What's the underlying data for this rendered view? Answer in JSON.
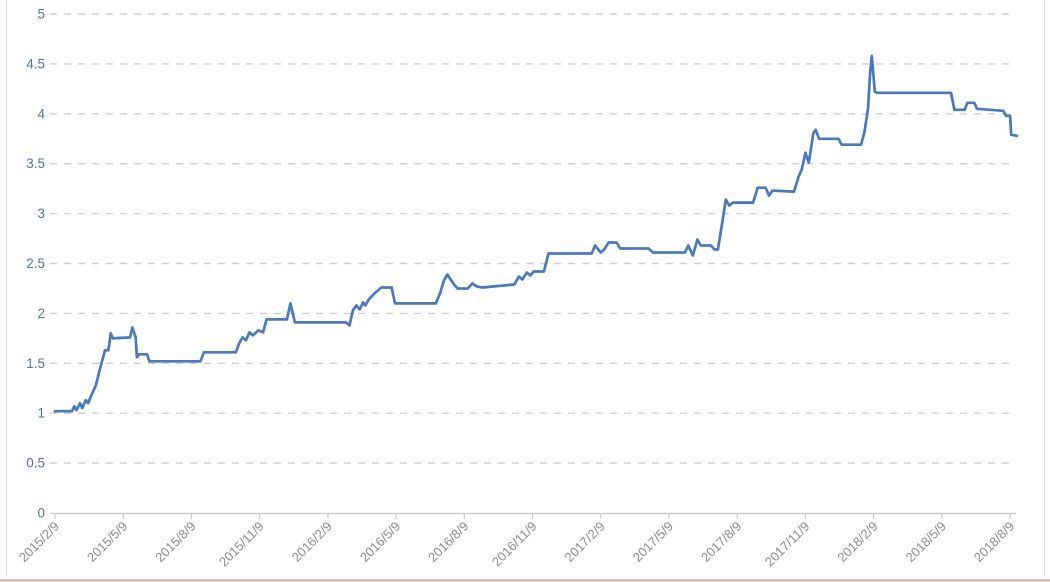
{
  "chart_data": {
    "type": "line",
    "title": "",
    "legend": "none",
    "grid": "dashed-horizontal",
    "x_axis": {
      "label": "",
      "tick_labels": [
        "2015/2/9",
        "2015/5/9",
        "2015/8/9",
        "2015/11/9",
        "2016/2/9",
        "2016/5/9",
        "2016/8/9",
        "2016/11/9",
        "2017/2/9",
        "2017/5/9",
        "2017/8/9",
        "2017/11/9",
        "2018/2/9",
        "2018/5/9",
        "2018/8/9"
      ],
      "tick_positions_months": [
        0,
        3,
        6,
        9,
        12,
        15,
        18,
        21,
        24,
        27,
        30,
        33,
        36,
        39,
        42
      ],
      "range_months": [
        0,
        42.3
      ]
    },
    "y_axis": {
      "label": "",
      "tick_labels": [
        "0",
        "0.5",
        "1",
        "1.5",
        "2",
        "2.5",
        "3",
        "3.5",
        "4",
        "4.5",
        "5"
      ],
      "tick_values": [
        0,
        0.5,
        1,
        1.5,
        2,
        2.5,
        3,
        3.5,
        4,
        4.5,
        5
      ],
      "range": [
        0,
        5
      ]
    },
    "series": [
      {
        "name": "value-line",
        "points": [
          [
            0,
            1.02
          ],
          [
            0.75,
            1.02
          ],
          [
            0.85,
            1.07
          ],
          [
            0.95,
            1.03
          ],
          [
            1.1,
            1.1
          ],
          [
            1.2,
            1.05
          ],
          [
            1.35,
            1.13
          ],
          [
            1.45,
            1.1
          ],
          [
            1.6,
            1.18
          ],
          [
            1.8,
            1.28
          ],
          [
            1.95,
            1.42
          ],
          [
            2.1,
            1.55
          ],
          [
            2.2,
            1.63
          ],
          [
            2.35,
            1.63
          ],
          [
            2.45,
            1.8
          ],
          [
            2.55,
            1.75
          ],
          [
            3.3,
            1.76
          ],
          [
            3.4,
            1.86
          ],
          [
            3.55,
            1.76
          ],
          [
            3.6,
            1.56
          ],
          [
            3.7,
            1.59
          ],
          [
            4.05,
            1.59
          ],
          [
            4.15,
            1.52
          ],
          [
            6.4,
            1.52
          ],
          [
            6.55,
            1.61
          ],
          [
            7.95,
            1.61
          ],
          [
            8.1,
            1.7
          ],
          [
            8.25,
            1.76
          ],
          [
            8.4,
            1.73
          ],
          [
            8.55,
            1.81
          ],
          [
            8.7,
            1.78
          ],
          [
            8.95,
            1.83
          ],
          [
            9.15,
            1.81
          ],
          [
            9.3,
            1.94
          ],
          [
            10.2,
            1.94
          ],
          [
            10.35,
            2.1
          ],
          [
            10.55,
            1.91
          ],
          [
            12.8,
            1.91
          ],
          [
            12.95,
            1.88
          ],
          [
            13.1,
            2.03
          ],
          [
            13.25,
            2.08
          ],
          [
            13.4,
            2.04
          ],
          [
            13.55,
            2.11
          ],
          [
            13.65,
            2.08
          ],
          [
            13.8,
            2.14
          ],
          [
            14.05,
            2.2
          ],
          [
            14.35,
            2.26
          ],
          [
            14.8,
            2.26
          ],
          [
            14.95,
            2.1
          ],
          [
            16.75,
            2.1
          ],
          [
            16.95,
            2.21
          ],
          [
            17.1,
            2.33
          ],
          [
            17.25,
            2.39
          ],
          [
            17.4,
            2.34
          ],
          [
            17.55,
            2.29
          ],
          [
            17.7,
            2.25
          ],
          [
            18.15,
            2.25
          ],
          [
            18.35,
            2.3
          ],
          [
            18.55,
            2.27
          ],
          [
            18.8,
            2.26
          ],
          [
            20.2,
            2.29
          ],
          [
            20.4,
            2.37
          ],
          [
            20.55,
            2.34
          ],
          [
            20.75,
            2.41
          ],
          [
            20.9,
            2.38
          ],
          [
            21.05,
            2.42
          ],
          [
            21.5,
            2.42
          ],
          [
            21.7,
            2.6
          ],
          [
            23.6,
            2.6
          ],
          [
            23.75,
            2.68
          ],
          [
            24.0,
            2.61
          ],
          [
            24.15,
            2.64
          ],
          [
            24.35,
            2.71
          ],
          [
            24.7,
            2.71
          ],
          [
            24.85,
            2.65
          ],
          [
            26.1,
            2.65
          ],
          [
            26.3,
            2.61
          ],
          [
            27.7,
            2.61
          ],
          [
            27.85,
            2.68
          ],
          [
            28.05,
            2.58
          ],
          [
            28.25,
            2.74
          ],
          [
            28.4,
            2.68
          ],
          [
            28.85,
            2.68
          ],
          [
            29.0,
            2.64
          ],
          [
            29.15,
            2.64
          ],
          [
            29.35,
            2.92
          ],
          [
            29.5,
            3.14
          ],
          [
            29.65,
            3.08
          ],
          [
            29.8,
            3.11
          ],
          [
            30.7,
            3.11
          ],
          [
            30.9,
            3.26
          ],
          [
            31.25,
            3.26
          ],
          [
            31.4,
            3.18
          ],
          [
            31.55,
            3.23
          ],
          [
            32.5,
            3.22
          ],
          [
            32.7,
            3.37
          ],
          [
            32.85,
            3.45
          ],
          [
            33.0,
            3.61
          ],
          [
            33.15,
            3.51
          ],
          [
            33.35,
            3.81
          ],
          [
            33.45,
            3.84
          ],
          [
            33.6,
            3.75
          ],
          [
            34.45,
            3.75
          ],
          [
            34.6,
            3.69
          ],
          [
            35.45,
            3.69
          ],
          [
            35.6,
            3.82
          ],
          [
            35.75,
            4.05
          ],
          [
            35.85,
            4.42
          ],
          [
            35.92,
            4.58
          ],
          [
            36.05,
            4.22
          ],
          [
            36.15,
            4.21
          ],
          [
            39.4,
            4.21
          ],
          [
            39.55,
            4.04
          ],
          [
            40.0,
            4.04
          ],
          [
            40.12,
            4.11
          ],
          [
            40.42,
            4.11
          ],
          [
            40.55,
            4.05
          ],
          [
            41.7,
            4.03
          ],
          [
            41.82,
            3.98
          ],
          [
            42.0,
            3.98
          ],
          [
            42.05,
            3.79
          ],
          [
            42.3,
            3.78
          ]
        ]
      }
    ]
  },
  "colors": {
    "line": "#4a79bd",
    "gridline": "#cfcfcf",
    "axis_line": "#c9c9c9",
    "y_label": "#4e74ad",
    "x_label": "#8c8c8c",
    "card_border": "#d9d9d9",
    "bottom_accent": "#ddbeb2",
    "background": "#ffffff"
  }
}
